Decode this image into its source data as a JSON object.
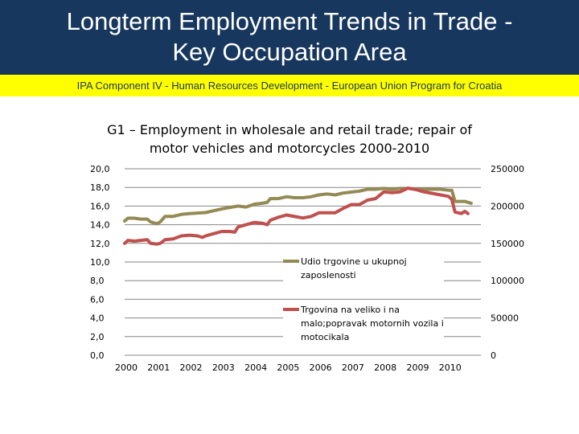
{
  "header": {
    "title_line1": "Longterm Employment Trends in Trade -",
    "title_line2": "Key Occupation Area",
    "subtitle": "IPA Component IV - Human Resources Development - European Union Program for Croatia"
  },
  "colors": {
    "header_bg": "#17375e",
    "band_bg": "#ffff00",
    "series_share": "#948a54",
    "series_employment": "#c0504d"
  },
  "chart_data": {
    "type": "line",
    "title_line1": "G1 – Employment in wholesale and retail trade; repair of",
    "title_line2": "motor vehicles and motorcycles 2000-2010",
    "xlabel": "",
    "ylabel": "",
    "grid": true,
    "legend_position": "right-center",
    "x_tick_labels": [
      "2000",
      "2001",
      "2002",
      "2003",
      "2004",
      "2005",
      "2006",
      "2007",
      "2008",
      "2009",
      "2010"
    ],
    "xlim": [
      2000,
      2011
    ],
    "y_left": {
      "lim": [
        0,
        20
      ],
      "ticks": [
        "20,0",
        "18,0",
        "16,0",
        "14,0",
        "12,0",
        "10,0",
        "8,0",
        "6,0",
        "4,0",
        "2,0",
        "0,0"
      ]
    },
    "y_right": {
      "lim": [
        0,
        250000
      ],
      "ticks": [
        "250000",
        "200000",
        "150000",
        "100000",
        "50000",
        "0"
      ]
    },
    "series": [
      {
        "name": "Udio trgovine u ukupnoj zaposlenosti",
        "axis": "left",
        "points": [
          [
            2000.0,
            14.4
          ],
          [
            2000.1,
            14.7
          ],
          [
            2000.3,
            14.7
          ],
          [
            2000.5,
            14.6
          ],
          [
            2000.7,
            14.6
          ],
          [
            2000.8,
            14.3
          ],
          [
            2001.0,
            14.1
          ],
          [
            2001.1,
            14.3
          ],
          [
            2001.25,
            14.9
          ],
          [
            2001.5,
            14.9
          ],
          [
            2001.75,
            15.1
          ],
          [
            2002.0,
            15.2
          ],
          [
            2002.5,
            15.3
          ],
          [
            2002.75,
            15.5
          ],
          [
            2003.0,
            15.7
          ],
          [
            2003.5,
            16.0
          ],
          [
            2003.75,
            15.9
          ],
          [
            2004.0,
            16.2
          ],
          [
            2004.25,
            16.3
          ],
          [
            2004.4,
            16.4
          ],
          [
            2004.5,
            16.8
          ],
          [
            2004.75,
            16.8
          ],
          [
            2005.0,
            17.0
          ],
          [
            2005.25,
            16.9
          ],
          [
            2005.5,
            16.9
          ],
          [
            2005.75,
            17.0
          ],
          [
            2006.0,
            17.2
          ],
          [
            2006.25,
            17.3
          ],
          [
            2006.5,
            17.2
          ],
          [
            2006.75,
            17.4
          ],
          [
            2007.0,
            17.5
          ],
          [
            2007.25,
            17.6
          ],
          [
            2007.5,
            17.8
          ],
          [
            2007.75,
            17.8
          ],
          [
            2008.0,
            17.9
          ],
          [
            2008.25,
            17.8
          ],
          [
            2008.5,
            17.9
          ],
          [
            2008.75,
            17.9
          ],
          [
            2009.0,
            17.8
          ],
          [
            2009.25,
            17.8
          ],
          [
            2009.5,
            17.8
          ],
          [
            2009.75,
            17.8
          ],
          [
            2010.0,
            17.7
          ],
          [
            2010.1,
            17.7
          ],
          [
            2010.2,
            16.5
          ],
          [
            2010.5,
            16.5
          ],
          [
            2010.7,
            16.3
          ]
        ]
      },
      {
        "name": "Trgovina na veliko i na malo;popravak motornih vozila i motocikala",
        "axis": "right",
        "points": [
          [
            2000.0,
            150000
          ],
          [
            2000.1,
            154000
          ],
          [
            2000.3,
            153000
          ],
          [
            2000.5,
            154000
          ],
          [
            2000.7,
            155000
          ],
          [
            2000.8,
            150000
          ],
          [
            2001.0,
            149000
          ],
          [
            2001.1,
            150000
          ],
          [
            2001.25,
            155000
          ],
          [
            2001.5,
            156000
          ],
          [
            2001.75,
            160000
          ],
          [
            2002.0,
            161000
          ],
          [
            2002.25,
            160000
          ],
          [
            2002.4,
            158000
          ],
          [
            2002.5,
            160000
          ],
          [
            2002.75,
            163000
          ],
          [
            2003.0,
            166000
          ],
          [
            2003.25,
            166000
          ],
          [
            2003.4,
            165000
          ],
          [
            2003.5,
            172000
          ],
          [
            2003.75,
            175000
          ],
          [
            2004.0,
            178000
          ],
          [
            2004.25,
            177000
          ],
          [
            2004.4,
            175000
          ],
          [
            2004.5,
            181000
          ],
          [
            2004.75,
            185000
          ],
          [
            2005.0,
            188000
          ],
          [
            2005.25,
            186000
          ],
          [
            2005.5,
            184000
          ],
          [
            2005.75,
            186000
          ],
          [
            2006.0,
            191000
          ],
          [
            2006.25,
            191000
          ],
          [
            2006.5,
            191000
          ],
          [
            2006.75,
            197000
          ],
          [
            2007.0,
            202000
          ],
          [
            2007.25,
            202000
          ],
          [
            2007.5,
            208000
          ],
          [
            2007.75,
            210000
          ],
          [
            2008.0,
            219000
          ],
          [
            2008.25,
            218000
          ],
          [
            2008.5,
            219000
          ],
          [
            2008.75,
            224000
          ],
          [
            2009.0,
            222000
          ],
          [
            2009.25,
            219000
          ],
          [
            2009.5,
            217000
          ],
          [
            2009.75,
            215000
          ],
          [
            2010.0,
            213000
          ],
          [
            2010.1,
            209000
          ],
          [
            2010.2,
            192000
          ],
          [
            2010.4,
            190000
          ],
          [
            2010.5,
            193000
          ],
          [
            2010.6,
            190000
          ]
        ]
      }
    ]
  }
}
